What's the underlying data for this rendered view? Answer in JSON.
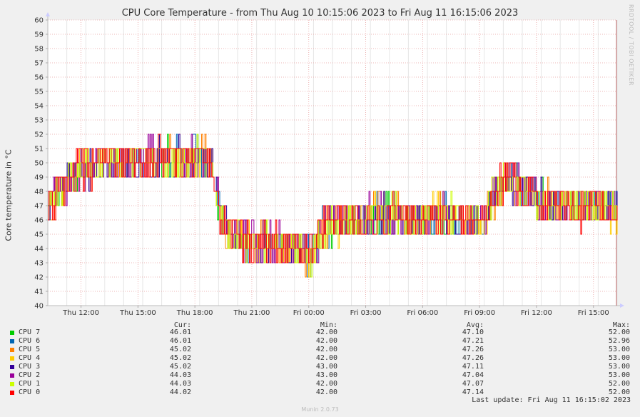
{
  "chart_data": {
    "type": "line",
    "title": "CPU Core Temperature - from Thu Aug 10 10:15:06 2023 to Fri Aug 11 16:15:06 2023",
    "ylabel": "Core temperature in °C",
    "ylim": [
      40,
      60
    ],
    "yticks": [
      "40",
      "41",
      "42",
      "43",
      "44",
      "45",
      "46",
      "47",
      "48",
      "49",
      "50",
      "51",
      "52",
      "53",
      "54",
      "55",
      "56",
      "57",
      "58",
      "59",
      "60"
    ],
    "xlim": [
      0,
      30
    ],
    "xticks": [
      {
        "label": "Thu 12:00",
        "h": 1.75
      },
      {
        "label": "Thu 15:00",
        "h": 4.75
      },
      {
        "label": "Thu 18:00",
        "h": 7.75
      },
      {
        "label": "Thu 21:00",
        "h": 10.75
      },
      {
        "label": "Fri 00:00",
        "h": 13.75
      },
      {
        "label": "Fri 03:00",
        "h": 16.75
      },
      {
        "label": "Fri 06:00",
        "h": 19.75
      },
      {
        "label": "Fri 09:00",
        "h": 22.75
      },
      {
        "label": "Fri 12:00",
        "h": 25.75
      },
      {
        "label": "Fri 15:00",
        "h": 28.75
      }
    ],
    "grid": true,
    "profile": {
      "h": [
        0,
        1,
        1.5,
        2,
        3,
        4,
        5,
        6,
        7,
        8,
        8.7,
        9,
        9.4,
        9.8,
        10.5,
        12,
        13,
        13.8,
        14.5,
        16,
        17,
        18,
        19,
        20,
        21,
        22,
        23,
        23.6,
        24.2,
        25,
        26,
        27,
        28,
        29,
        30
      ],
      "v": [
        47,
        48.5,
        49.5,
        49.5,
        50,
        50,
        50.2,
        50.5,
        50.2,
        50.5,
        50.2,
        46.5,
        45.5,
        45,
        44.5,
        44.3,
        44,
        43.5,
        45.5,
        46,
        46.3,
        46.4,
        46.2,
        46.2,
        46.5,
        46,
        46.3,
        48,
        49,
        48.2,
        47.3,
        47.2,
        46.7,
        47.2,
        46.5
      ]
    },
    "series": [
      {
        "name": "CPU 7",
        "color": "#00cc00",
        "cur": "46.01",
        "min": "42.00",
        "avg": "47.10",
        "max": "52.00"
      },
      {
        "name": "CPU 6",
        "color": "#0066b3",
        "cur": "46.01",
        "min": "42.00",
        "avg": "47.21",
        "max": "52.96"
      },
      {
        "name": "CPU 5",
        "color": "#ff8000",
        "cur": "45.02",
        "min": "42.00",
        "avg": "47.26",
        "max": "53.00"
      },
      {
        "name": "CPU 4",
        "color": "#ffcc00",
        "cur": "45.02",
        "min": "42.00",
        "avg": "47.26",
        "max": "53.00"
      },
      {
        "name": "CPU 3",
        "color": "#330099",
        "cur": "45.02",
        "min": "43.00",
        "avg": "47.11",
        "max": "53.00"
      },
      {
        "name": "CPU 2",
        "color": "#990099",
        "cur": "44.03",
        "min": "43.00",
        "avg": "47.04",
        "max": "53.00"
      },
      {
        "name": "CPU 1",
        "color": "#ccff00",
        "cur": "44.03",
        "min": "42.00",
        "avg": "47.07",
        "max": "52.00"
      },
      {
        "name": "CPU 0",
        "color": "#ff0000",
        "cur": "44.02",
        "min": "42.00",
        "avg": "47.14",
        "max": "52.00"
      }
    ]
  },
  "legend_headers": {
    "cur": "Cur:",
    "min": "Min:",
    "avg": "Avg:",
    "max": "Max:"
  },
  "side_credit": "RRDTOOL / TOBI OETIKER",
  "last_update": "Last update:  Fri Aug 11 16:15:02 2023",
  "version": "Munin 2.0.73"
}
